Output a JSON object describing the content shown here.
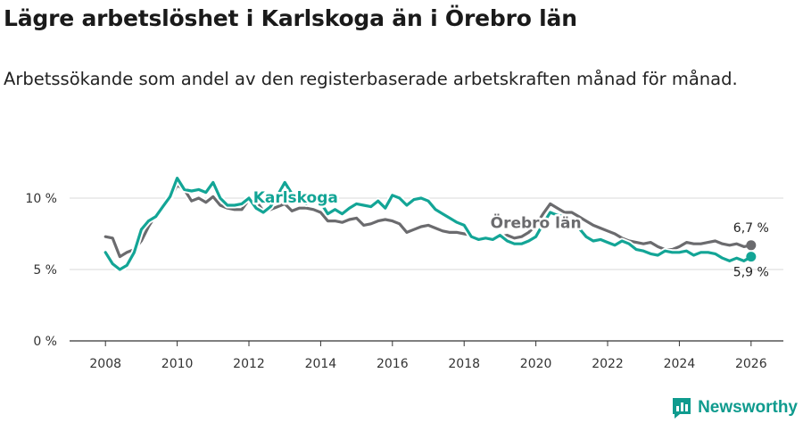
{
  "title": "Lägre arbetslöshet i Karlskoga än i Örebro län",
  "subtitle": "Arbetssökande som andel av den registerbaserade arbetskraften månad för månad.",
  "brand": {
    "name": "Newsworthy",
    "icon": "newsworthy-logo-icon",
    "color": "#0f9b8e"
  },
  "chart_data": {
    "type": "line",
    "xlabel": "",
    "ylabel": "",
    "xlim": [
      2007.0,
      2026.9
    ],
    "ylim": [
      0,
      12
    ],
    "y_ticks": [
      0,
      5,
      10
    ],
    "y_tick_labels": [
      "0 %",
      "5 %",
      "10 %"
    ],
    "x_ticks": [
      2008,
      2010,
      2012,
      2014,
      2016,
      2018,
      2020,
      2022,
      2024,
      2026
    ],
    "x_tick_labels": [
      "2008",
      "2010",
      "2012",
      "2014",
      "2016",
      "2018",
      "2020",
      "2022",
      "2024",
      "2026"
    ],
    "grid": "horizontal",
    "series": [
      {
        "name": "Örebro län",
        "color": "#6b6b6e",
        "end_label": "6,7 %",
        "x": [
          2008.0,
          2008.2,
          2008.4,
          2008.6,
          2008.8,
          2009.0,
          2009.2,
          2009.4,
          2009.6,
          2009.8,
          2010.0,
          2010.2,
          2010.4,
          2010.6,
          2010.8,
          2011.0,
          2011.2,
          2011.4,
          2011.6,
          2011.8,
          2012.0,
          2012.2,
          2012.4,
          2012.6,
          2012.8,
          2013.0,
          2013.2,
          2013.4,
          2013.6,
          2013.8,
          2014.0,
          2014.2,
          2014.4,
          2014.6,
          2014.8,
          2015.0,
          2015.2,
          2015.4,
          2015.6,
          2015.8,
          2016.0,
          2016.2,
          2016.4,
          2016.6,
          2016.8,
          2017.0,
          2017.2,
          2017.4,
          2017.6,
          2017.8,
          2018.0,
          2018.2,
          2018.4,
          2018.6,
          2018.8,
          2019.0,
          2019.2,
          2019.4,
          2019.6,
          2019.8,
          2020.0,
          2020.2,
          2020.4,
          2020.6,
          2020.8,
          2021.0,
          2021.2,
          2021.4,
          2021.6,
          2021.8,
          2022.0,
          2022.2,
          2022.4,
          2022.6,
          2022.8,
          2023.0,
          2023.2,
          2023.4,
          2023.6,
          2023.8,
          2024.0,
          2024.2,
          2024.4,
          2024.6,
          2024.8,
          2025.0,
          2025.2,
          2025.4,
          2025.6,
          2025.8,
          2026.0
        ],
        "values": [
          7.3,
          7.2,
          5.9,
          6.2,
          6.4,
          7.0,
          8.0,
          8.8,
          9.3,
          10.0,
          10.9,
          10.6,
          9.8,
          10.0,
          9.7,
          10.1,
          9.5,
          9.3,
          9.2,
          9.2,
          9.9,
          9.8,
          9.1,
          9.2,
          9.4,
          9.6,
          9.1,
          9.3,
          9.3,
          9.2,
          9.0,
          8.4,
          8.4,
          8.3,
          8.5,
          8.6,
          8.1,
          8.2,
          8.4,
          8.5,
          8.4,
          8.2,
          7.6,
          7.8,
          8.0,
          8.1,
          7.9,
          7.7,
          7.6,
          7.6,
          7.5,
          7.4,
          7.0,
          7.1,
          7.2,
          7.3,
          7.4,
          7.2,
          7.3,
          7.6,
          8.1,
          8.9,
          9.6,
          9.3,
          9.0,
          9.0,
          8.7,
          8.4,
          8.1,
          7.9,
          7.7,
          7.5,
          7.2,
          7.0,
          6.9,
          6.8,
          6.9,
          6.6,
          6.4,
          6.4,
          6.6,
          6.9,
          6.8,
          6.8,
          6.9,
          7.0,
          6.8,
          6.7,
          6.8,
          6.6,
          6.7
        ]
      },
      {
        "name": "Karlskoga",
        "color": "#13a596",
        "end_label": "5,9 %",
        "x": [
          2008.0,
          2008.2,
          2008.4,
          2008.6,
          2008.8,
          2009.0,
          2009.2,
          2009.4,
          2009.6,
          2009.8,
          2010.0,
          2010.2,
          2010.4,
          2010.6,
          2010.8,
          2011.0,
          2011.2,
          2011.4,
          2011.6,
          2011.8,
          2012.0,
          2012.2,
          2012.4,
          2012.6,
          2012.8,
          2013.0,
          2013.2,
          2013.4,
          2013.6,
          2013.8,
          2014.0,
          2014.2,
          2014.4,
          2014.6,
          2014.8,
          2015.0,
          2015.2,
          2015.4,
          2015.6,
          2015.8,
          2016.0,
          2016.2,
          2016.4,
          2016.6,
          2016.8,
          2017.0,
          2017.2,
          2017.4,
          2017.6,
          2017.8,
          2018.0,
          2018.2,
          2018.4,
          2018.6,
          2018.8,
          2019.0,
          2019.2,
          2019.4,
          2019.6,
          2019.8,
          2020.0,
          2020.2,
          2020.4,
          2020.6,
          2020.8,
          2021.0,
          2021.2,
          2021.4,
          2021.6,
          2021.8,
          2022.0,
          2022.2,
          2022.4,
          2022.6,
          2022.8,
          2023.0,
          2023.2,
          2023.4,
          2023.6,
          2023.8,
          2024.0,
          2024.2,
          2024.4,
          2024.6,
          2024.8,
          2025.0,
          2025.2,
          2025.4,
          2025.6,
          2025.8,
          2026.0
        ],
        "values": [
          6.2,
          5.4,
          5.0,
          5.3,
          6.2,
          7.8,
          8.4,
          8.7,
          9.4,
          10.1,
          11.4,
          10.6,
          10.5,
          10.6,
          10.4,
          11.1,
          10.0,
          9.5,
          9.5,
          9.6,
          10.0,
          9.3,
          9.0,
          9.4,
          10.2,
          11.1,
          10.3,
          9.9,
          9.6,
          9.9,
          9.7,
          8.9,
          9.2,
          8.9,
          9.3,
          9.6,
          9.5,
          9.4,
          9.8,
          9.3,
          10.2,
          10.0,
          9.5,
          9.9,
          10.0,
          9.8,
          9.2,
          8.9,
          8.6,
          8.3,
          8.1,
          7.3,
          7.1,
          7.2,
          7.1,
          7.4,
          7.0,
          6.8,
          6.8,
          7.0,
          7.3,
          8.2,
          9.0,
          8.8,
          8.7,
          8.4,
          7.9,
          7.3,
          7.0,
          7.1,
          6.9,
          6.7,
          7.0,
          6.8,
          6.4,
          6.3,
          6.1,
          6.0,
          6.3,
          6.2,
          6.2,
          6.3,
          6.0,
          6.2,
          6.2,
          6.1,
          5.8,
          5.6,
          5.8,
          5.6,
          5.9
        ]
      }
    ],
    "annotations": [
      {
        "series": "Karlskoga",
        "text": "Karlskoga",
        "x": 2013.3,
        "y": 9.7
      },
      {
        "series": "Örebro län",
        "text": "Örebro län",
        "x": 2020.0,
        "y": 7.9
      }
    ]
  }
}
